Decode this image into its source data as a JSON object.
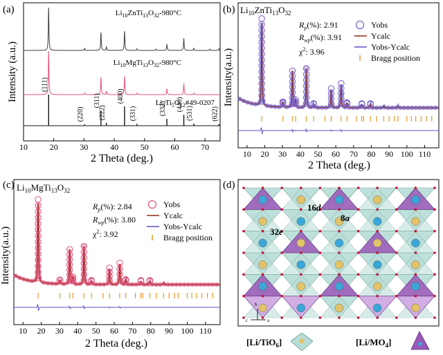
{
  "chart_data": [
    {
      "id": "a",
      "type": "line",
      "panel_label": "(a)",
      "xlabel": "2 Theta (deg.)",
      "ylabel": "Intensity (a.u.)",
      "xlim": [
        10,
        75
      ],
      "xticks": [
        10,
        20,
        30,
        40,
        50,
        60,
        70
      ],
      "series": [
        {
          "name": "Li10ZnTi13O32-980°C",
          "label_main": "Li",
          "label_sub": "10",
          "label_rest": "ZnTi",
          "label_sub2": "13",
          "label_rest2": "O",
          "label_sub3": "32",
          "label_tail": "-980°C",
          "color": "#3c3c3c",
          "peaks": [
            [
              18.3,
              1.0
            ],
            [
              30.2,
              0.05
            ],
            [
              35.6,
              0.42
            ],
            [
              37.4,
              0.08
            ],
            [
              43.4,
              0.45
            ],
            [
              47.5,
              0.04
            ],
            [
              53.9,
              0.03
            ],
            [
              57.4,
              0.15
            ],
            [
              63.0,
              0.28
            ],
            [
              66.3,
              0.05
            ],
            [
              71.6,
              0.03
            ],
            [
              74.6,
              0.04
            ]
          ]
        },
        {
          "name": "Li10MgTi13O32-980°C",
          "label_main": "Li",
          "label_sub": "10",
          "label_rest": "MgTi",
          "label_sub2": "13",
          "label_rest2": "O",
          "label_sub3": "32",
          "label_tail": "-980°C",
          "color": "#e8507c",
          "peaks": [
            [
              18.3,
              1.0
            ],
            [
              30.2,
              0.04
            ],
            [
              35.6,
              0.4
            ],
            [
              37.4,
              0.08
            ],
            [
              43.4,
              0.42
            ],
            [
              47.5,
              0.04
            ],
            [
              57.4,
              0.14
            ],
            [
              63.0,
              0.26
            ],
            [
              66.3,
              0.04
            ]
          ]
        },
        {
          "name": "Li4Ti5O12#49-0207",
          "label_main": "Li",
          "label_sub": "4",
          "label_rest": "Ti",
          "label_sub2": "5",
          "label_rest2": "O",
          "label_sub3": "12",
          "label_tail": "#49-0207",
          "color": "#111111",
          "peaks": [
            [
              18.3,
              1.0
            ],
            [
              30.2,
              0.04
            ],
            [
              35.6,
              0.48
            ],
            [
              37.4,
              0.09
            ],
            [
              43.4,
              0.62
            ],
            [
              47.5,
              0.06
            ],
            [
              57.4,
              0.22
            ],
            [
              63.0,
              0.35
            ],
            [
              66.3,
              0.07
            ],
            [
              74.6,
              0.05
            ]
          ]
        }
      ],
      "hkl_labels": [
        {
          "x": 18.3,
          "text": "(111)"
        },
        {
          "x": 30.2,
          "text": "(220)"
        },
        {
          "x": 35.6,
          "text": "(311)"
        },
        {
          "x": 37.4,
          "text": "(222)"
        },
        {
          "x": 43.4,
          "text": "(400)"
        },
        {
          "x": 47.5,
          "text": "(331)"
        },
        {
          "x": 57.4,
          "text": "(333)"
        },
        {
          "x": 63.0,
          "text": "(440)"
        },
        {
          "x": 66.3,
          "text": "(531)"
        },
        {
          "x": 74.6,
          "text": "(622)"
        }
      ]
    },
    {
      "id": "b",
      "type": "scatter",
      "panel_label": "(b)",
      "title_main": "Li",
      "title_sub": "10",
      "title_rest": "ZnTi",
      "title_sub2": "13",
      "title_rest2": "O",
      "title_sub3": "32",
      "xlabel": "2 Theta (deg.)",
      "ylabel": "Intensity(a.u.)",
      "xlim": [
        5,
        118
      ],
      "xticks": [
        10,
        20,
        30,
        40,
        50,
        60,
        70,
        80,
        90,
        100,
        110
      ],
      "stats": [
        {
          "sym": "R",
          "sub": "p",
          "value": "(%): 2.91"
        },
        {
          "sym": "R",
          "sub": "wp",
          "value": "(%): 3.91"
        },
        {
          "sym": "χ",
          "sub": "2",
          "value": ": 3.96",
          "sup": true
        }
      ],
      "legend": [
        "Yobs",
        "Ycalc",
        "Yobs-Ycalc",
        "Bragg position"
      ],
      "colors": {
        "yobs": "#7a5cc8",
        "ycalc": "#8b2a12",
        "diff": "#5a4fc8",
        "bragg": "#e89520",
        "bg": "#6b6bd0"
      },
      "peaks": [
        [
          18.3,
          1.0
        ],
        [
          30.2,
          0.06
        ],
        [
          35.6,
          0.42
        ],
        [
          37.4,
          0.09
        ],
        [
          43.4,
          0.45
        ],
        [
          47.5,
          0.04
        ],
        [
          57.4,
          0.22
        ],
        [
          63.0,
          0.28
        ],
        [
          66.3,
          0.06
        ],
        [
          74.6,
          0.04
        ],
        [
          79.5,
          0.04
        ],
        [
          87.0,
          0.02
        ],
        [
          95.0,
          0.02
        ]
      ],
      "bragg": [
        18.3,
        30.2,
        35.6,
        37.4,
        43.4,
        47.5,
        53.9,
        57.4,
        63.0,
        66.3,
        71.6,
        74.6,
        75.6,
        79.5,
        83.0,
        87.0,
        90.0,
        93.0,
        95.0,
        100.0,
        102.5,
        105.0,
        108.0,
        111.0,
        114.0
      ]
    },
    {
      "id": "c",
      "type": "scatter",
      "panel_label": "(c)",
      "title_main": "Li",
      "title_sub": "10",
      "title_rest": "MgTi",
      "title_sub2": "13",
      "title_rest2": "O",
      "title_sub3": "32",
      "xlabel": "2 Theta (deg.)",
      "ylabel": "Intensity(a.u.)",
      "xlim": [
        5,
        118
      ],
      "xticks": [
        10,
        20,
        30,
        40,
        50,
        60,
        70,
        80,
        90,
        100,
        110
      ],
      "stats": [
        {
          "sym": "R",
          "sub": "p",
          "value": "(%): 2.84"
        },
        {
          "sym": "R",
          "sub": "wp",
          "value": "(%): 3.80"
        },
        {
          "sym": "χ",
          "sub": "2",
          "value": ": 3.92",
          "sup": true
        }
      ],
      "legend": [
        "Yobs",
        "Ycalc",
        "Yobs-Ycalc",
        "Bragg position"
      ],
      "colors": {
        "yobs": "#e0507a",
        "ycalc": "#8b2a12",
        "diff": "#5a4fc8",
        "bragg": "#e89520",
        "bg": "#e0507a"
      },
      "peaks": [
        [
          18.3,
          1.0
        ],
        [
          30.2,
          0.05
        ],
        [
          35.6,
          0.42
        ],
        [
          37.4,
          0.09
        ],
        [
          43.4,
          0.46
        ],
        [
          47.5,
          0.04
        ],
        [
          57.4,
          0.2
        ],
        [
          63.0,
          0.26
        ],
        [
          66.3,
          0.06
        ],
        [
          74.6,
          0.04
        ],
        [
          79.5,
          0.04
        ],
        [
          87.0,
          0.02
        ]
      ],
      "bragg": [
        18.3,
        30.2,
        35.6,
        37.4,
        43.4,
        47.5,
        53.9,
        57.4,
        63.0,
        66.3,
        71.6,
        74.6,
        75.6,
        79.5,
        83.0,
        87.0,
        90.0,
        93.0,
        95.0,
        100.0,
        102.5,
        105.0,
        108.0,
        111.0,
        114.0
      ]
    }
  ],
  "panel_d": {
    "panel_label": "(d)",
    "site_labels": {
      "s16d_num": "16",
      "s16d_let": "d",
      "s8a_num": "8",
      "s8a_let": "a",
      "s32e_num": "32",
      "s32e_let": "e"
    },
    "axes": {
      "b": "b",
      "c": "c",
      "a": "a"
    },
    "legend_oct": {
      "open": "[Li/TiO",
      "sub": "6",
      "close": "]"
    },
    "legend_tet": {
      "open": "[Li/MO",
      "sub": "4",
      "close": "]"
    },
    "colors": {
      "octahedron": "#b8ddd6",
      "tetrahedron": "#9b58b8",
      "tetra_light": "#d7a6e6",
      "sphere_blue": "#3ba7d8",
      "sphere_yellow": "#e2c36a",
      "oxygen": "#c8103a"
    }
  }
}
